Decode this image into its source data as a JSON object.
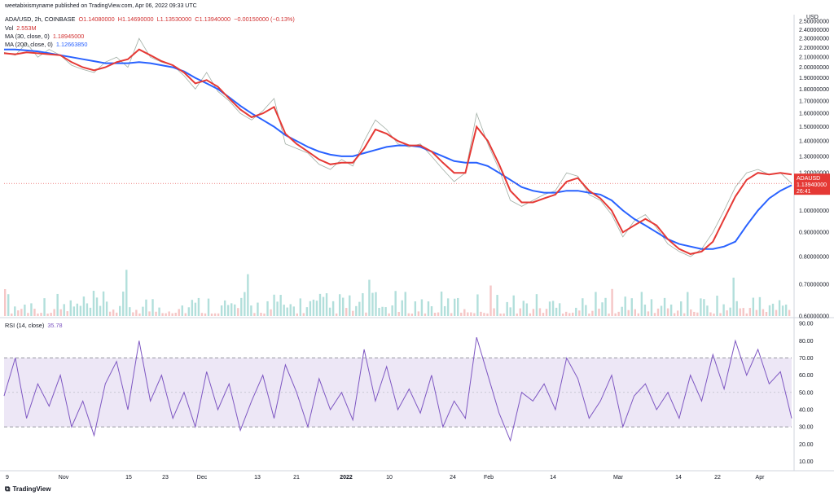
{
  "header": {
    "published": "weetabixismyname published on TradingView.com, Apr 06, 2022 09:33 UTC"
  },
  "ohlc": {
    "symbol": "ADA/USD, 2h, COINBASE",
    "open": "O1.14080000",
    "high": "H1.14690000",
    "low": "L1.13530000",
    "close": "C1.13940000",
    "change": "−0.00150000 (−0.13%)"
  },
  "legend": {
    "vol_label": "Vol",
    "vol_value": "2.553M",
    "ma30_label": "MA (30, close, 0)",
    "ma30_value": "1.18945000",
    "ma200_label": "MA (200, close, 0)",
    "ma200_value": "1.12663850"
  },
  "colors": {
    "ma30": "#e53935",
    "ma200": "#2962ff",
    "rsi": "#7e57c2",
    "rsi_band": "#ede7f6",
    "price_tag": "#e53935",
    "up_vol": "#b2dfdb",
    "down_vol": "#f5c6c6"
  },
  "price_tag": {
    "symbol": "ADAUSD",
    "price": "1.13940000",
    "time": "26:41"
  },
  "currency": "USD",
  "rsi_label": {
    "name": "RSI (14, close)",
    "value": "35.78"
  },
  "footer": {
    "brand": "TradingView"
  },
  "chart_data": [
    {
      "type": "line",
      "title": "ADA/USD, 2h, COINBASE",
      "x_ticks": [
        "9",
        "Nov",
        "15",
        "23",
        "Dec",
        "13",
        "21",
        "2022",
        "10",
        "24",
        "Feb",
        "14",
        "Mar",
        "14",
        "22",
        "Apr"
      ],
      "y_ticks": [
        "2.50000000",
        "2.40000000",
        "2.30000000",
        "2.20000000",
        "2.10000000",
        "2.00000000",
        "1.90000000",
        "1.80000000",
        "1.70000000",
        "1.60000000",
        "1.50000000",
        "1.40000000",
        "1.30000000",
        "1.20000000",
        "1.00000000",
        "0.90000000",
        "0.80000000",
        "0.70000000",
        "0.60000000"
      ],
      "ylim": [
        0.6,
        2.5
      ],
      "y_scale": "log",
      "series": [
        {
          "name": "ADA/USD",
          "values": [
            2.15,
            2.12,
            2.25,
            2.1,
            2.18,
            2.12,
            2.02,
            1.98,
            1.95,
            2.05,
            2.1,
            2.0,
            2.3,
            2.1,
            2.05,
            2.02,
            1.92,
            1.8,
            1.95,
            1.78,
            1.7,
            1.6,
            1.55,
            1.62,
            1.72,
            1.38,
            1.35,
            1.32,
            1.25,
            1.22,
            1.28,
            1.24,
            1.4,
            1.55,
            1.48,
            1.38,
            1.36,
            1.38,
            1.3,
            1.22,
            1.15,
            1.2,
            1.6,
            1.38,
            1.22,
            1.05,
            1.02,
            1.05,
            1.08,
            1.1,
            1.2,
            1.18,
            1.08,
            1.05,
            0.98,
            0.88,
            0.95,
            0.98,
            0.92,
            0.85,
            0.82,
            0.8,
            0.83,
            0.9,
            1.0,
            1.12,
            1.2,
            1.22,
            1.19,
            1.2,
            1.14
          ]
        },
        {
          "name": "MA (30, close, 0)",
          "values": [
            2.14,
            2.13,
            2.15,
            2.14,
            2.13,
            2.12,
            2.05,
            2.0,
            1.97,
            2.0,
            2.05,
            2.08,
            2.18,
            2.12,
            2.06,
            2.02,
            1.95,
            1.85,
            1.88,
            1.82,
            1.72,
            1.63,
            1.57,
            1.6,
            1.65,
            1.45,
            1.38,
            1.33,
            1.28,
            1.25,
            1.26,
            1.26,
            1.35,
            1.48,
            1.45,
            1.4,
            1.37,
            1.37,
            1.33,
            1.26,
            1.2,
            1.2,
            1.5,
            1.4,
            1.25,
            1.1,
            1.04,
            1.04,
            1.06,
            1.08,
            1.15,
            1.17,
            1.1,
            1.06,
            1.0,
            0.9,
            0.93,
            0.96,
            0.93,
            0.87,
            0.83,
            0.81,
            0.82,
            0.86,
            0.96,
            1.07,
            1.16,
            1.2,
            1.19,
            1.2,
            1.19
          ]
        },
        {
          "name": "MA (200, close, 0)",
          "values": [
            2.18,
            2.18,
            2.17,
            2.16,
            2.14,
            2.12,
            2.1,
            2.08,
            2.06,
            2.04,
            2.04,
            2.04,
            2.05,
            2.04,
            2.02,
            2.0,
            1.96,
            1.9,
            1.85,
            1.8,
            1.73,
            1.66,
            1.6,
            1.55,
            1.5,
            1.44,
            1.4,
            1.36,
            1.33,
            1.31,
            1.3,
            1.3,
            1.32,
            1.34,
            1.36,
            1.37,
            1.37,
            1.36,
            1.33,
            1.3,
            1.27,
            1.26,
            1.26,
            1.24,
            1.2,
            1.16,
            1.12,
            1.1,
            1.09,
            1.09,
            1.1,
            1.1,
            1.09,
            1.08,
            1.05,
            1.0,
            0.96,
            0.93,
            0.9,
            0.87,
            0.85,
            0.84,
            0.83,
            0.83,
            0.84,
            0.86,
            0.93,
            1.0,
            1.06,
            1.1,
            1.13
          ]
        }
      ]
    },
    {
      "type": "line",
      "title": "RSI (14, close)",
      "y_ticks": [
        "90.00",
        "80.00",
        "70.00",
        "60.00",
        "50.00",
        "40.00",
        "30.00",
        "20.00",
        "10.00"
      ],
      "ylim": [
        5,
        92
      ],
      "bands": [
        30,
        70
      ],
      "series": [
        {
          "name": "RSI (14, close)",
          "values": [
            48,
            70,
            35,
            55,
            42,
            60,
            30,
            45,
            25,
            55,
            68,
            40,
            80,
            45,
            60,
            35,
            50,
            30,
            62,
            40,
            55,
            28,
            45,
            60,
            35,
            66,
            50,
            30,
            58,
            40,
            50,
            34,
            75,
            45,
            65,
            40,
            52,
            38,
            60,
            30,
            45,
            35,
            82,
            60,
            38,
            22,
            50,
            45,
            55,
            40,
            70,
            58,
            35,
            45,
            60,
            30,
            48,
            55,
            40,
            50,
            35,
            60,
            45,
            72,
            52,
            80,
            60,
            75,
            55,
            62,
            35
          ]
        }
      ]
    }
  ]
}
